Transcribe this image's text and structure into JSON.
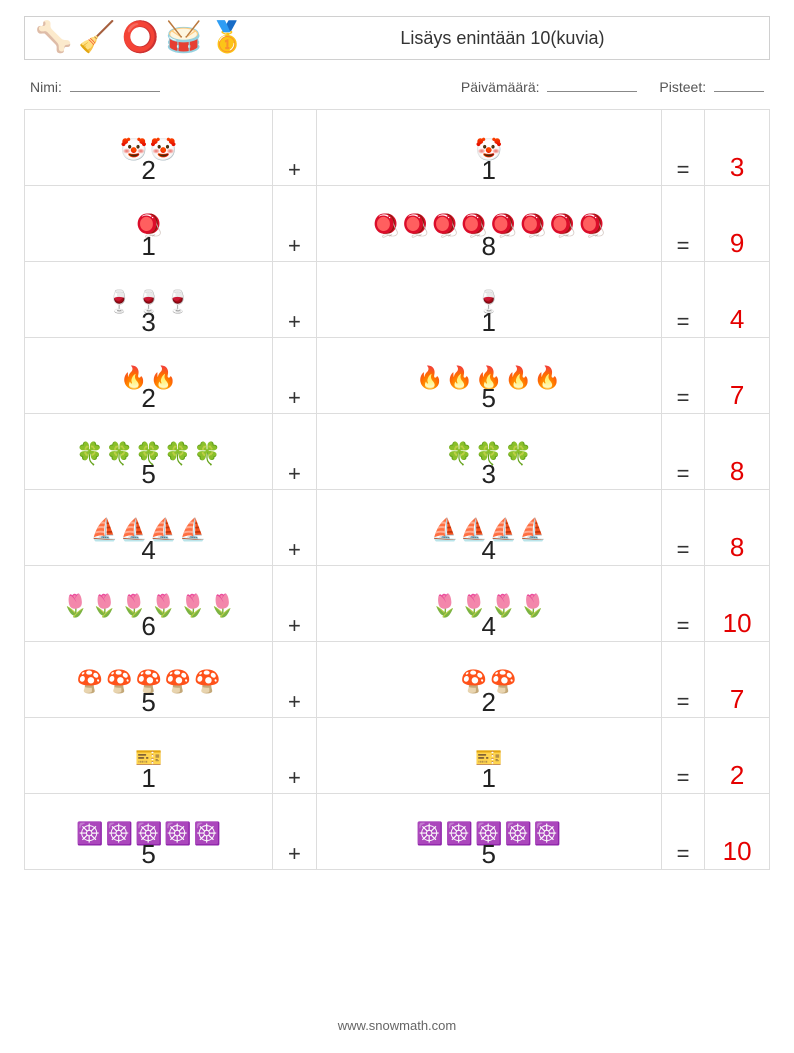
{
  "header": {
    "title": "Lisäys enintään 10(kuvia)",
    "icons": [
      "🦴",
      "🧹",
      "⭕",
      "🥁",
      "🥇"
    ]
  },
  "meta": {
    "name_label": "Nimi:",
    "date_label": "Päivämäärä:",
    "score_label": "Pisteet:"
  },
  "operator": "+",
  "equals": "=",
  "rows": [
    {
      "icon": "🤡",
      "a": 2,
      "b": 1,
      "ans": 3
    },
    {
      "icon": "🪀",
      "a": 1,
      "b": 8,
      "ans": 9
    },
    {
      "icon": "🍷",
      "a": 3,
      "b": 1,
      "ans": 4
    },
    {
      "icon": "🔥",
      "a": 2,
      "b": 5,
      "ans": 7
    },
    {
      "icon": "🍀",
      "a": 5,
      "b": 3,
      "ans": 8
    },
    {
      "icon": "⛵",
      "a": 4,
      "b": 4,
      "ans": 8
    },
    {
      "icon": "🌷",
      "a": 6,
      "b": 4,
      "ans": 10
    },
    {
      "icon": "🍄",
      "a": 5,
      "b": 2,
      "ans": 7
    },
    {
      "icon": "🎫",
      "a": 1,
      "b": 1,
      "ans": 2
    },
    {
      "icon": "☸️",
      "a": 5,
      "b": 5,
      "ans": 10
    }
  ],
  "footer": "www.snowmath.com",
  "colors": {
    "answer": "#e40000",
    "border": "#dddddd",
    "text": "#333333"
  },
  "fontsizes": {
    "title": 18,
    "meta": 14,
    "icon": 22,
    "number": 26,
    "answer": 26,
    "footer": 13
  }
}
